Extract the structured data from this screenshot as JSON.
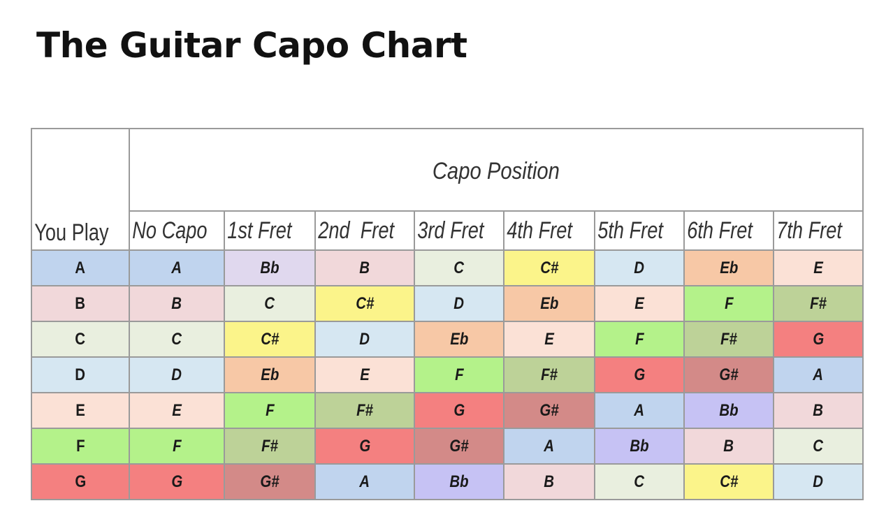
{
  "title": "The Guitar Capo Chart",
  "table": {
    "you_play_header": "You Play",
    "capo_position_header": "Capo Position",
    "columns": [
      "No Capo",
      "1st Fret",
      "2nd  Fret",
      "3rd Fret",
      "4th Fret",
      "5th Fret",
      "6th Fret",
      "7th Fret"
    ],
    "rows": [
      {
        "play": "A",
        "notes": [
          "A",
          "Bb",
          "B",
          "C",
          "C#",
          "D",
          "Eb",
          "E"
        ]
      },
      {
        "play": "B",
        "notes": [
          "B",
          "C",
          "C#",
          "D",
          "Eb",
          "E",
          "F",
          "F#"
        ]
      },
      {
        "play": "C",
        "notes": [
          "C",
          "C#",
          "D",
          "Eb",
          "E",
          "F",
          "F#",
          "G"
        ]
      },
      {
        "play": "D",
        "notes": [
          "D",
          "Eb",
          "E",
          "F",
          "F#",
          "G",
          "G#",
          "A"
        ]
      },
      {
        "play": "E",
        "notes": [
          "E",
          "F",
          "F#",
          "G",
          "G#",
          "A",
          "Bb",
          "B"
        ]
      },
      {
        "play": "F",
        "notes": [
          "F",
          "F#",
          "G",
          "G#",
          "A",
          "Bb",
          "B",
          "C"
        ]
      },
      {
        "play": "G",
        "notes": [
          "G",
          "G#",
          "A",
          "Bb",
          "B",
          "C",
          "C#",
          "D"
        ]
      }
    ]
  },
  "note_colors": {
    "A": "#c0d4ee",
    "Bb": "#e0d8ee",
    "B": "#f1d8da",
    "C": "#e9efdf",
    "C#": "#fbf48a",
    "D": "#d6e7f2",
    "Eb": "#f7c8a6",
    "E": "#fbe1d6",
    "F": "#b4f28a",
    "F#": "#bdd298",
    "G": "#f48080",
    "G#": "#d38a88"
  },
  "bb_alt_color": "#c6c2f4"
}
